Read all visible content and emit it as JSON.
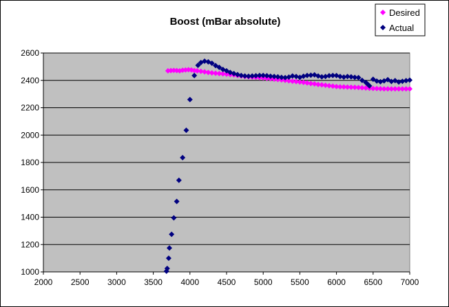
{
  "chart_data": {
    "type": "scatter",
    "title": "Boost (mBar absolute)",
    "xlabel": "",
    "ylabel": "",
    "xlim": [
      2000,
      7000
    ],
    "ylim": [
      1000,
      2600
    ],
    "x_ticks": [
      2000,
      2500,
      3000,
      3500,
      4000,
      4500,
      5000,
      5500,
      6000,
      6500,
      7000
    ],
    "y_ticks": [
      1000,
      1200,
      1400,
      1600,
      1800,
      2000,
      2200,
      2400,
      2600
    ],
    "grid": "horizontal",
    "legend_position": "top-right",
    "plot_background": "#c0c0c0",
    "series": [
      {
        "name": "Desired",
        "color": "#ff00ff",
        "marker": "diamond",
        "points": [
          [
            3700,
            2470
          ],
          [
            3740,
            2472
          ],
          [
            3780,
            2473
          ],
          [
            3820,
            2472
          ],
          [
            3860,
            2470
          ],
          [
            3900,
            2474
          ],
          [
            3940,
            2476
          ],
          [
            3980,
            2478
          ],
          [
            4020,
            2476
          ],
          [
            4060,
            2472
          ],
          [
            4100,
            2470
          ],
          [
            4150,
            2466
          ],
          [
            4200,
            2462
          ],
          [
            4250,
            2458
          ],
          [
            4300,
            2455
          ],
          [
            4350,
            2452
          ],
          [
            4400,
            2450
          ],
          [
            4450,
            2448
          ],
          [
            4500,
            2445
          ],
          [
            4550,
            2442
          ],
          [
            4600,
            2440
          ],
          [
            4650,
            2436
          ],
          [
            4700,
            2432
          ],
          [
            4750,
            2428
          ],
          [
            4800,
            2426
          ],
          [
            4850,
            2424
          ],
          [
            4900,
            2422
          ],
          [
            4950,
            2420
          ],
          [
            5000,
            2418
          ],
          [
            5050,
            2415
          ],
          [
            5100,
            2412
          ],
          [
            5150,
            2409
          ],
          [
            5200,
            2406
          ],
          [
            5250,
            2403
          ],
          [
            5300,
            2400
          ],
          [
            5350,
            2397
          ],
          [
            5400,
            2394
          ],
          [
            5450,
            2391
          ],
          [
            5500,
            2388
          ],
          [
            5550,
            2385
          ],
          [
            5600,
            2381
          ],
          [
            5650,
            2377
          ],
          [
            5700,
            2374
          ],
          [
            5750,
            2370
          ],
          [
            5800,
            2367
          ],
          [
            5850,
            2364
          ],
          [
            5900,
            2361
          ],
          [
            5950,
            2358
          ],
          [
            6000,
            2355
          ],
          [
            6050,
            2353
          ],
          [
            6100,
            2352
          ],
          [
            6150,
            2351
          ],
          [
            6200,
            2350
          ],
          [
            6250,
            2349
          ],
          [
            6300,
            2348
          ],
          [
            6350,
            2346
          ],
          [
            6400,
            2344
          ],
          [
            6450,
            2342
          ],
          [
            6500,
            2341
          ],
          [
            6550,
            2340
          ],
          [
            6600,
            2339
          ],
          [
            6650,
            2338
          ],
          [
            6700,
            2338
          ],
          [
            6750,
            2338
          ],
          [
            6800,
            2338
          ],
          [
            6850,
            2338
          ],
          [
            6900,
            2338
          ],
          [
            6950,
            2338
          ],
          [
            7000,
            2338
          ]
        ]
      },
      {
        "name": "Actual",
        "color": "#000080",
        "marker": "diamond",
        "points": [
          [
            3680,
            1005
          ],
          [
            3690,
            1025
          ],
          [
            3710,
            1100
          ],
          [
            3720,
            1175
          ],
          [
            3750,
            1275
          ],
          [
            3780,
            1395
          ],
          [
            3820,
            1515
          ],
          [
            3850,
            1670
          ],
          [
            3900,
            1835
          ],
          [
            3950,
            2035
          ],
          [
            4000,
            2260
          ],
          [
            4060,
            2435
          ],
          [
            4110,
            2510
          ],
          [
            4150,
            2530
          ],
          [
            4200,
            2540
          ],
          [
            4250,
            2535
          ],
          [
            4300,
            2525
          ],
          [
            4350,
            2508
          ],
          [
            4400,
            2495
          ],
          [
            4450,
            2480
          ],
          [
            4500,
            2470
          ],
          [
            4550,
            2458
          ],
          [
            4600,
            2450
          ],
          [
            4650,
            2442
          ],
          [
            4700,
            2436
          ],
          [
            4750,
            2432
          ],
          [
            4800,
            2430
          ],
          [
            4850,
            2432
          ],
          [
            4900,
            2434
          ],
          [
            4950,
            2436
          ],
          [
            5000,
            2436
          ],
          [
            5050,
            2434
          ],
          [
            5100,
            2430
          ],
          [
            5150,
            2428
          ],
          [
            5200,
            2426
          ],
          [
            5250,
            2422
          ],
          [
            5300,
            2420
          ],
          [
            5350,
            2424
          ],
          [
            5400,
            2432
          ],
          [
            5450,
            2428
          ],
          [
            5500,
            2422
          ],
          [
            5550,
            2430
          ],
          [
            5600,
            2436
          ],
          [
            5650,
            2438
          ],
          [
            5700,
            2440
          ],
          [
            5750,
            2432
          ],
          [
            5800,
            2426
          ],
          [
            5850,
            2428
          ],
          [
            5900,
            2434
          ],
          [
            5950,
            2436
          ],
          [
            6000,
            2435
          ],
          [
            6050,
            2428
          ],
          [
            6100,
            2424
          ],
          [
            6150,
            2428
          ],
          [
            6200,
            2426
          ],
          [
            6250,
            2422
          ],
          [
            6300,
            2420
          ],
          [
            6350,
            2400
          ],
          [
            6400,
            2385
          ],
          [
            6430,
            2370
          ],
          [
            6450,
            2360
          ],
          [
            6500,
            2408
          ],
          [
            6550,
            2395
          ],
          [
            6600,
            2390
          ],
          [
            6650,
            2396
          ],
          [
            6700,
            2405
          ],
          [
            6750,
            2392
          ],
          [
            6800,
            2398
          ],
          [
            6850,
            2388
          ],
          [
            6900,
            2393
          ],
          [
            6950,
            2398
          ],
          [
            7000,
            2402
          ]
        ]
      }
    ]
  }
}
